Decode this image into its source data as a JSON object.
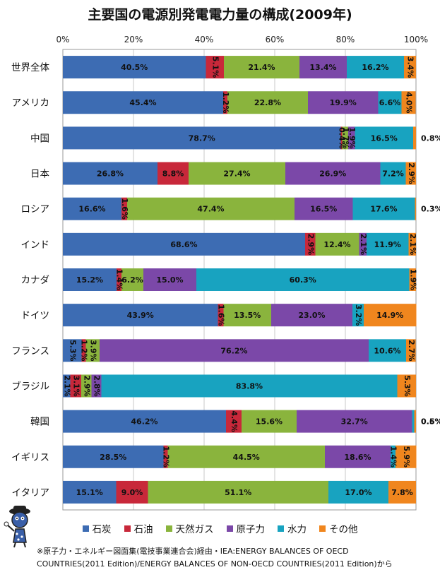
{
  "chart_data": {
    "type": "bar",
    "orientation": "horizontal",
    "stacked": true,
    "title": "主要国の電源別発電電力量の構成(2009年)",
    "xlabel": "",
    "ylabel": "",
    "xlim": [
      0,
      100
    ],
    "x_ticks": [
      "0%",
      "20%",
      "40%",
      "60%",
      "80%",
      "100%"
    ],
    "grid": true,
    "legend_position": "bottom",
    "categories": [
      "世界全体",
      "アメリカ",
      "中国",
      "日本",
      "ロシア",
      "インド",
      "カナダ",
      "ドイツ",
      "フランス",
      "ブラジル",
      "韓国",
      "イギリス",
      "イタリア"
    ],
    "series": [
      {
        "name": "石炭",
        "color": "#3d6cb3",
        "values": [
          40.5,
          45.4,
          78.7,
          26.8,
          16.6,
          68.6,
          15.2,
          43.9,
          5.3,
          2.1,
          46.2,
          28.5,
          15.1
        ]
      },
      {
        "name": "石油",
        "color": "#c8283a",
        "values": [
          5.1,
          1.2,
          0.4,
          8.8,
          1.6,
          2.9,
          1.4,
          1.6,
          1.2,
          3.1,
          4.4,
          1.2,
          9.0
        ]
      },
      {
        "name": "天然ガス",
        "color": "#8ab43d",
        "values": [
          21.4,
          22.8,
          1.7,
          27.4,
          47.4,
          12.4,
          6.2,
          13.5,
          3.9,
          2.9,
          15.6,
          44.5,
          51.1
        ]
      },
      {
        "name": "原子力",
        "color": "#7b48a8",
        "values": [
          13.4,
          19.9,
          1.9,
          26.9,
          16.5,
          2.1,
          15.0,
          23.0,
          76.2,
          2.8,
          32.7,
          18.6,
          0
        ]
      },
      {
        "name": "水力",
        "color": "#18a3c0",
        "values": [
          16.2,
          6.6,
          16.5,
          7.2,
          17.6,
          11.9,
          60.3,
          3.2,
          10.6,
          83.8,
          0.6,
          1.4,
          17.0
        ]
      },
      {
        "name": "その他",
        "color": "#f0861e",
        "values": [
          3.4,
          4.0,
          0.8,
          2.9,
          0.3,
          2.1,
          1.9,
          14.9,
          2.7,
          5.3,
          0.5,
          5.9,
          7.8
        ]
      }
    ]
  },
  "source_note": {
    "line1": "※原子力・エネルギー図面集(電技事業連合会)経由・IEA:ENERGY BALANCES OF OECD",
    "line2": "COUNTRIES(2011 Edition)/ENERGY BALANCES OF NON-OECD COUNTRIES(2011 Edition)から"
  },
  "mascot": {
    "icon": "mascot-character-icon"
  }
}
